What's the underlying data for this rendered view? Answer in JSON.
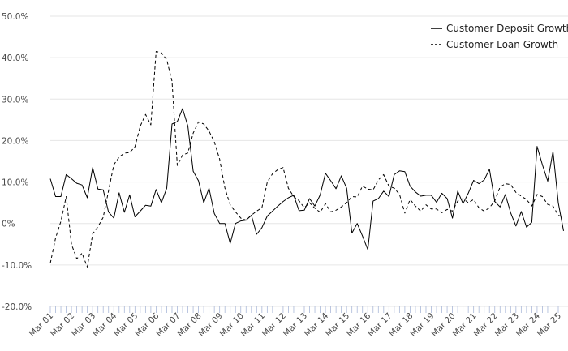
{
  "chart_data": {
    "type": "line",
    "ylim": [
      -20,
      50
    ],
    "yticks": [
      -20,
      -10,
      0,
      10,
      20,
      30,
      40,
      50
    ],
    "ytick_labels": [
      "-20.0%",
      "-10.0%",
      "0%",
      "10.0%",
      "20.0%",
      "30.0%",
      "40.0%",
      "50.0%"
    ],
    "x_start": "2001-03",
    "x_end": "2025-03",
    "xtick_labels": [
      "Mar 01",
      "Mar 02",
      "Mar 03",
      "Mar 04",
      "Mar 05",
      "Mar 06",
      "Mar 07",
      "Mar 08",
      "Mar 09",
      "Mar 10",
      "Mar 11",
      "Mar 12",
      "Mar 13",
      "Mar 14",
      "Mar 15",
      "Mar 16",
      "Mar 17",
      "Mar 18",
      "Mar 19",
      "Mar 20",
      "Mar 21",
      "Mar 22",
      "Mar 23",
      "Mar 24",
      "Mar 25"
    ],
    "grid": "horizontal",
    "legend_position": "top-right",
    "series": [
      {
        "name": "Customer Deposit Growth",
        "style": "solid",
        "color": "#000000",
        "points": [
          [
            "2001-03",
            10.8
          ],
          [
            "2001-06",
            6.5
          ],
          [
            "2001-09",
            6.5
          ],
          [
            "2001-12",
            11.8
          ],
          [
            "2002-03",
            10.8
          ],
          [
            "2002-06",
            9.7
          ],
          [
            "2002-09",
            9.3
          ],
          [
            "2002-12",
            6.2
          ],
          [
            "2003-03",
            13.5
          ],
          [
            "2003-06",
            8.3
          ],
          [
            "2003-09",
            8.1
          ],
          [
            "2003-12",
            2.8
          ],
          [
            "2004-03",
            1.3
          ],
          [
            "2004-06",
            7.4
          ],
          [
            "2004-09",
            2.7
          ],
          [
            "2004-12",
            6.9
          ],
          [
            "2005-03",
            1.6
          ],
          [
            "2005-06",
            3.0
          ],
          [
            "2005-09",
            4.4
          ],
          [
            "2005-12",
            4.2
          ],
          [
            "2006-03",
            8.2
          ],
          [
            "2006-06",
            5.0
          ],
          [
            "2006-09",
            8.5
          ],
          [
            "2006-12",
            24.0
          ],
          [
            "2007-03",
            24.6
          ],
          [
            "2007-06",
            27.7
          ],
          [
            "2007-09",
            23.5
          ],
          [
            "2007-12",
            12.6
          ],
          [
            "2008-03",
            10.3
          ],
          [
            "2008-06",
            5.0
          ],
          [
            "2008-09",
            8.5
          ],
          [
            "2008-12",
            2.4
          ],
          [
            "2009-03",
            0.0
          ],
          [
            "2009-06",
            0.0
          ],
          [
            "2009-09",
            -4.8
          ],
          [
            "2009-12",
            0.0
          ],
          [
            "2010-03",
            0.6
          ],
          [
            "2010-06",
            0.8
          ],
          [
            "2010-09",
            2.0
          ],
          [
            "2010-12",
            -2.6
          ],
          [
            "2011-03",
            -1.0
          ],
          [
            "2011-06",
            1.8
          ],
          [
            "2011-09",
            3.0
          ],
          [
            "2011-12",
            4.2
          ],
          [
            "2012-03",
            5.3
          ],
          [
            "2012-06",
            6.2
          ],
          [
            "2012-09",
            6.8
          ],
          [
            "2012-12",
            3.1
          ],
          [
            "2013-03",
            3.2
          ],
          [
            "2013-06",
            6.0
          ],
          [
            "2013-09",
            4.2
          ],
          [
            "2013-12",
            6.9
          ],
          [
            "2014-03",
            12.1
          ],
          [
            "2014-06",
            10.3
          ],
          [
            "2014-09",
            8.4
          ],
          [
            "2014-12",
            11.5
          ],
          [
            "2015-03",
            8.5
          ],
          [
            "2015-06",
            -2.3
          ],
          [
            "2015-09",
            0.0
          ],
          [
            "2015-12",
            -3.0
          ],
          [
            "2016-03",
            -6.3
          ],
          [
            "2016-06",
            5.4
          ],
          [
            "2016-09",
            6.0
          ],
          [
            "2016-12",
            7.8
          ],
          [
            "2017-03",
            6.5
          ],
          [
            "2017-06",
            11.8
          ],
          [
            "2017-09",
            12.7
          ],
          [
            "2017-12",
            12.5
          ],
          [
            "2018-03",
            9.0
          ],
          [
            "2018-06",
            7.6
          ],
          [
            "2018-09",
            6.6
          ],
          [
            "2018-12",
            6.8
          ],
          [
            "2019-03",
            6.8
          ],
          [
            "2019-06",
            5.1
          ],
          [
            "2019-09",
            7.3
          ],
          [
            "2019-12",
            6.0
          ],
          [
            "2020-03",
            1.3
          ],
          [
            "2020-06",
            7.8
          ],
          [
            "2020-09",
            4.8
          ],
          [
            "2020-12",
            7.3
          ],
          [
            "2021-03",
            10.4
          ],
          [
            "2021-06",
            9.6
          ],
          [
            "2021-09",
            10.5
          ],
          [
            "2021-12",
            13.1
          ],
          [
            "2022-03",
            5.3
          ],
          [
            "2022-06",
            4.0
          ],
          [
            "2022-09",
            7.0
          ],
          [
            "2022-12",
            2.6
          ],
          [
            "2023-03",
            -0.6
          ],
          [
            "2023-06",
            2.9
          ],
          [
            "2023-09",
            -0.9
          ],
          [
            "2023-12",
            0.3
          ],
          [
            "2024-03",
            18.6
          ],
          [
            "2024-06",
            14.2
          ],
          [
            "2024-09",
            10.2
          ],
          [
            "2024-12",
            17.4
          ],
          [
            "2025-03",
            5.0
          ],
          [
            "2025-06",
            -1.8
          ]
        ]
      },
      {
        "name": "Customer Loan Growth",
        "style": "dashed",
        "color": "#000000",
        "points": [
          [
            "2001-03",
            -9.6
          ],
          [
            "2001-06",
            -3.5
          ],
          [
            "2001-09",
            0.5
          ],
          [
            "2001-12",
            6.5
          ],
          [
            "2002-03",
            -5.0
          ],
          [
            "2002-06",
            -8.5
          ],
          [
            "2002-09",
            -7.2
          ],
          [
            "2002-12",
            -10.5
          ],
          [
            "2003-03",
            -2.5
          ],
          [
            "2003-06",
            -0.8
          ],
          [
            "2003-09",
            1.5
          ],
          [
            "2003-12",
            7.8
          ],
          [
            "2004-03",
            14.2
          ],
          [
            "2004-06",
            16.0
          ],
          [
            "2004-09",
            17.0
          ],
          [
            "2004-12",
            17.1
          ],
          [
            "2005-03",
            18.5
          ],
          [
            "2005-06",
            23.5
          ],
          [
            "2005-09",
            26.3
          ],
          [
            "2005-12",
            23.8
          ],
          [
            "2006-03",
            41.5
          ],
          [
            "2006-06",
            41.2
          ],
          [
            "2006-09",
            39.5
          ],
          [
            "2006-12",
            34.3
          ],
          [
            "2007-03",
            14.0
          ],
          [
            "2007-06",
            16.5
          ],
          [
            "2007-09",
            17.0
          ],
          [
            "2007-12",
            21.8
          ],
          [
            "2008-03",
            24.5
          ],
          [
            "2008-06",
            24.0
          ],
          [
            "2008-09",
            22.3
          ],
          [
            "2008-12",
            19.7
          ],
          [
            "2009-03",
            15.5
          ],
          [
            "2009-06",
            8.5
          ],
          [
            "2009-09",
            4.5
          ],
          [
            "2009-12",
            2.8
          ],
          [
            "2010-03",
            1.3
          ],
          [
            "2010-06",
            0.8
          ],
          [
            "2010-09",
            2.0
          ],
          [
            "2010-12",
            3.0
          ],
          [
            "2011-03",
            3.8
          ],
          [
            "2011-06",
            10.0
          ],
          [
            "2011-09",
            12.0
          ],
          [
            "2011-12",
            13.0
          ],
          [
            "2012-03",
            13.5
          ],
          [
            "2012-06",
            8.5
          ],
          [
            "2012-09",
            6.5
          ],
          [
            "2012-12",
            5.5
          ],
          [
            "2013-03",
            3.8
          ],
          [
            "2013-06",
            5.0
          ],
          [
            "2013-09",
            3.7
          ],
          [
            "2013-12",
            2.7
          ],
          [
            "2014-03",
            4.8
          ],
          [
            "2014-06",
            2.8
          ],
          [
            "2014-09",
            3.2
          ],
          [
            "2014-12",
            4.0
          ],
          [
            "2015-03",
            5.0
          ],
          [
            "2015-06",
            6.5
          ],
          [
            "2015-09",
            6.4
          ],
          [
            "2015-12",
            9.0
          ],
          [
            "2016-03",
            8.3
          ],
          [
            "2016-06",
            8.1
          ],
          [
            "2016-09",
            10.5
          ],
          [
            "2016-12",
            11.8
          ],
          [
            "2017-03",
            9.0
          ],
          [
            "2017-06",
            8.5
          ],
          [
            "2017-09",
            7.0
          ],
          [
            "2017-12",
            2.5
          ],
          [
            "2018-03",
            5.8
          ],
          [
            "2018-06",
            4.2
          ],
          [
            "2018-09",
            3.0
          ],
          [
            "2018-12",
            4.5
          ],
          [
            "2019-03",
            3.5
          ],
          [
            "2019-06",
            3.5
          ],
          [
            "2019-09",
            2.6
          ],
          [
            "2019-12",
            3.4
          ],
          [
            "2020-03",
            3.0
          ],
          [
            "2020-06",
            5.4
          ],
          [
            "2020-09",
            6.0
          ],
          [
            "2020-12",
            5.0
          ],
          [
            "2021-03",
            5.8
          ],
          [
            "2021-06",
            3.8
          ],
          [
            "2021-09",
            3.0
          ],
          [
            "2021-12",
            3.8
          ],
          [
            "2022-03",
            5.5
          ],
          [
            "2022-06",
            8.8
          ],
          [
            "2022-09",
            9.6
          ],
          [
            "2022-12",
            9.4
          ],
          [
            "2023-03",
            7.5
          ],
          [
            "2023-06",
            6.6
          ],
          [
            "2023-09",
            5.8
          ],
          [
            "2023-12",
            4.2
          ],
          [
            "2024-03",
            7.0
          ],
          [
            "2024-06",
            6.5
          ],
          [
            "2024-09",
            4.6
          ],
          [
            "2024-12",
            4.2
          ],
          [
            "2025-03",
            2.0
          ],
          [
            "2025-06",
            1.5
          ]
        ]
      }
    ],
    "colors": {
      "gridline": "#e6e6e6",
      "axis_ticks": "#aab8d8",
      "text": "#4a4a4a"
    }
  }
}
